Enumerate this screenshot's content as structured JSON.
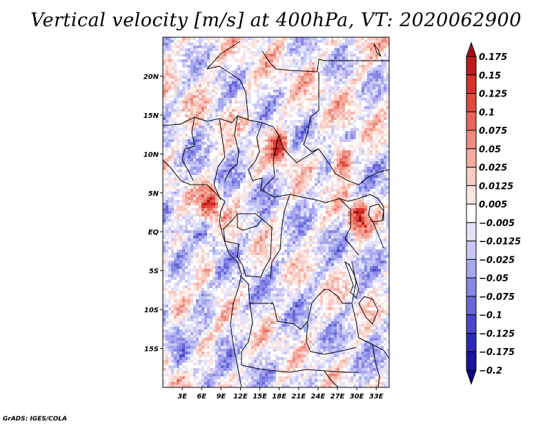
{
  "title": "Vertical velocity [m/s] at 400hPa, VT: 2020062900",
  "footer": "GrADS: IGES/COLA",
  "chart_data": {
    "type": "heatmap",
    "variable": "Vertical velocity",
    "units": "m/s",
    "level": "400hPa",
    "valid_time": "2020062900",
    "lon_range": [
      0,
      35
    ],
    "lat_range": [
      -20,
      25
    ],
    "x_ticks": [
      "3E",
      "6E",
      "9E",
      "12E",
      "15E",
      "18E",
      "21E",
      "24E",
      "27E",
      "30E",
      "33E"
    ],
    "x_tick_values": [
      3,
      6,
      9,
      12,
      15,
      18,
      21,
      24,
      27,
      30,
      33
    ],
    "y_ticks": [
      "20N",
      "15N",
      "10N",
      "5N",
      "EQ",
      "5S",
      "10S",
      "15S"
    ],
    "y_tick_values": [
      20,
      15,
      10,
      5,
      0,
      -5,
      -10,
      -15
    ],
    "colorbar": {
      "labels": [
        "0.175",
        "0.15",
        "0.125",
        "0.1",
        "0.075",
        "0.05",
        "0.025",
        "0.0125",
        "0.005",
        "-0.005",
        "-0.0125",
        "-0.025",
        "-0.05",
        "-0.075",
        "-0.1",
        "-0.125",
        "-0.175",
        "-0.2"
      ],
      "colors": [
        "#a50f15",
        "#c01a1a",
        "#d6312a",
        "#e0493e",
        "#e8675a",
        "#ef8a7c",
        "#f5aca0",
        "#f9cbc2",
        "#fde6e2",
        "#ffffff",
        "#e2e2fb",
        "#c6c6f6",
        "#a7a7ef",
        "#8787e6",
        "#6767da",
        "#4848cc",
        "#2a2ab8",
        "#1515a0",
        "#0a0a80"
      ]
    },
    "features": [
      {
        "label": "strong ascent band",
        "lon": 17.8,
        "lat": 11.0
      },
      {
        "label": "strong ascent band",
        "lon": 27.5,
        "lat": 9.5
      },
      {
        "label": "strong ascent band",
        "lon": 30.0,
        "lat": 2.0
      },
      {
        "label": "strong ascent band",
        "lon": 7.0,
        "lat": 4.0
      }
    ]
  },
  "colors": {
    "text": "#000000",
    "border": "#000000"
  }
}
